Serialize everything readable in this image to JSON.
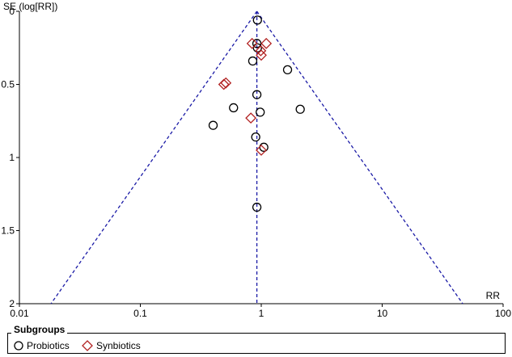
{
  "chart_data": {
    "type": "scatter",
    "subtype": "funnel-plot",
    "ylabel": "SE (log[RR])",
    "xlabel": "RR",
    "x_scale": "log",
    "xlim": [
      0.01,
      100
    ],
    "ylim": [
      0,
      2
    ],
    "y_inverted": true,
    "x_ticks": [
      "0.01",
      "0.1",
      "1",
      "10",
      "100"
    ],
    "x_tick_values": [
      0.01,
      0.1,
      1,
      10,
      100
    ],
    "y_ticks": [
      "0",
      "0.5",
      "1",
      "1.5",
      "2"
    ],
    "y_tick_values": [
      0,
      0.5,
      1,
      1.5,
      2
    ],
    "pooled_rr": 0.92,
    "funnel_line_style": "dashed",
    "funnel_color": "#1a1aa6",
    "legend_title": "Subgroups",
    "legend_position": "bottom",
    "series": [
      {
        "name": "Probiotics",
        "marker": "circle",
        "color": "#000000",
        "points": [
          {
            "x": 0.93,
            "y": 0.06
          },
          {
            "x": 0.92,
            "y": 0.22
          },
          {
            "x": 0.93,
            "y": 0.25
          },
          {
            "x": 0.85,
            "y": 0.34
          },
          {
            "x": 1.65,
            "y": 0.4
          },
          {
            "x": 0.92,
            "y": 0.57
          },
          {
            "x": 0.59,
            "y": 0.66
          },
          {
            "x": 0.98,
            "y": 0.69
          },
          {
            "x": 2.1,
            "y": 0.67
          },
          {
            "x": 0.4,
            "y": 0.78
          },
          {
            "x": 0.9,
            "y": 0.86
          },
          {
            "x": 1.05,
            "y": 0.93
          },
          {
            "x": 0.92,
            "y": 1.34
          }
        ]
      },
      {
        "name": "Synbiotics",
        "marker": "diamond",
        "color": "#b22222",
        "points": [
          {
            "x": 0.84,
            "y": 0.22
          },
          {
            "x": 1.1,
            "y": 0.22
          },
          {
            "x": 0.99,
            "y": 0.27
          },
          {
            "x": 1.0,
            "y": 0.3
          },
          {
            "x": 0.49,
            "y": 0.5
          },
          {
            "x": 0.51,
            "y": 0.49
          },
          {
            "x": 0.82,
            "y": 0.73
          },
          {
            "x": 1.0,
            "y": 0.95
          }
        ]
      }
    ]
  }
}
